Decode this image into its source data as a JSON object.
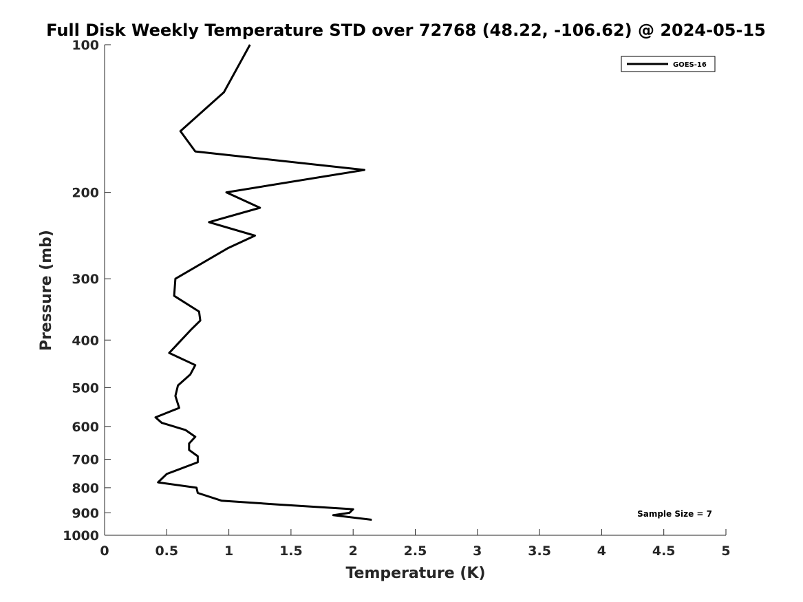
{
  "chart_data": {
    "type": "line",
    "title": "Full Disk Weekly Temperature STD over 72768 (48.22, -106.62) @ 2024-05-15",
    "xlabel": "Temperature (K)",
    "ylabel": "Pressure (mb)",
    "xlim": [
      0,
      5
    ],
    "ylim": [
      1000,
      100
    ],
    "yscale": "log",
    "y_reversed": true,
    "x_ticks": [
      "0",
      "0.5",
      "1",
      "1.5",
      "2",
      "2.5",
      "3",
      "3.5",
      "4",
      "4.5",
      "5"
    ],
    "y_ticks": [
      "100",
      "200",
      "300",
      "400",
      "500",
      "600",
      "700",
      "800",
      "900",
      "1000"
    ],
    "grid": false,
    "legend_position": "top-right",
    "series": [
      {
        "name": "GOES-16",
        "color": "#000000",
        "points": [
          [
            1.17,
            100
          ],
          [
            0.96,
            125
          ],
          [
            0.61,
            150
          ],
          [
            0.73,
            165
          ],
          [
            2.09,
            180
          ],
          [
            0.98,
            200
          ],
          [
            1.25,
            215
          ],
          [
            0.84,
            230
          ],
          [
            1.21,
            245
          ],
          [
            0.99,
            260
          ],
          [
            0.57,
            300
          ],
          [
            0.56,
            325
          ],
          [
            0.76,
            350
          ],
          [
            0.77,
            365
          ],
          [
            0.7,
            380
          ],
          [
            0.52,
            425
          ],
          [
            0.73,
            450
          ],
          [
            0.69,
            470
          ],
          [
            0.59,
            495
          ],
          [
            0.57,
            520
          ],
          [
            0.6,
            550
          ],
          [
            0.41,
            575
          ],
          [
            0.46,
            590
          ],
          [
            0.65,
            610
          ],
          [
            0.73,
            630
          ],
          [
            0.68,
            650
          ],
          [
            0.68,
            670
          ],
          [
            0.75,
            690
          ],
          [
            0.75,
            710
          ],
          [
            0.5,
            750
          ],
          [
            0.43,
            780
          ],
          [
            0.74,
            800
          ],
          [
            0.75,
            820
          ],
          [
            0.94,
            850
          ],
          [
            1.38,
            865
          ],
          [
            2.0,
            885
          ],
          [
            1.97,
            900
          ],
          [
            1.84,
            910
          ],
          [
            2.15,
            930
          ]
        ]
      }
    ],
    "annotations": [
      "Sample Size = 7"
    ]
  }
}
